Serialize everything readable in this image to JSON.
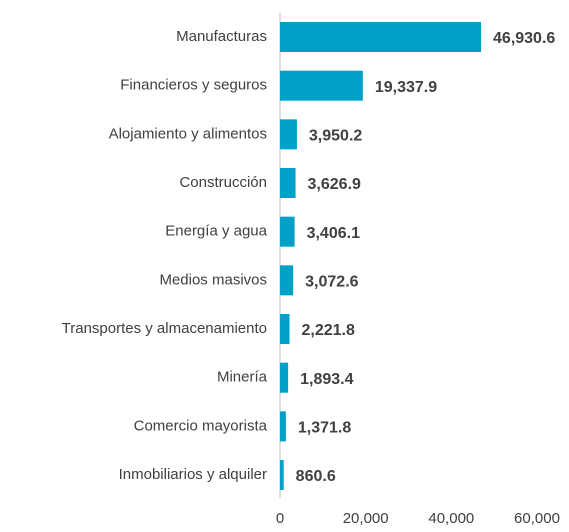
{
  "chart_data": {
    "type": "bar",
    "orientation": "horizontal",
    "categories": [
      "Manufacturas",
      "Financieros y seguros",
      "Alojamiento y alimentos",
      "Construcción",
      "Energía y agua",
      "Medios masivos",
      "Transportes y almacenamiento",
      "Minería",
      "Comercio mayorista",
      "Inmobiliarios y alquiler"
    ],
    "values": [
      46930.6,
      19337.9,
      3950.2,
      3626.9,
      3406.1,
      3072.6,
      2221.8,
      1893.4,
      1371.8,
      860.6
    ],
    "value_labels": [
      "46,930.6",
      "19,337.9",
      "3,950.2",
      "3,626.9",
      "3,406.1",
      "3,072.6",
      "2,221.8",
      "1,893.4",
      "1,371.8",
      "860.6"
    ],
    "color": "#00a0c8",
    "xlim": [
      0,
      60000
    ],
    "xticks": [
      0,
      {
        "value": 20000,
        "label": "20,000"
      },
      {
        "value": 40000,
        "label": "40,000"
      },
      {
        "value": 60000,
        "label": "60,000"
      }
    ]
  }
}
